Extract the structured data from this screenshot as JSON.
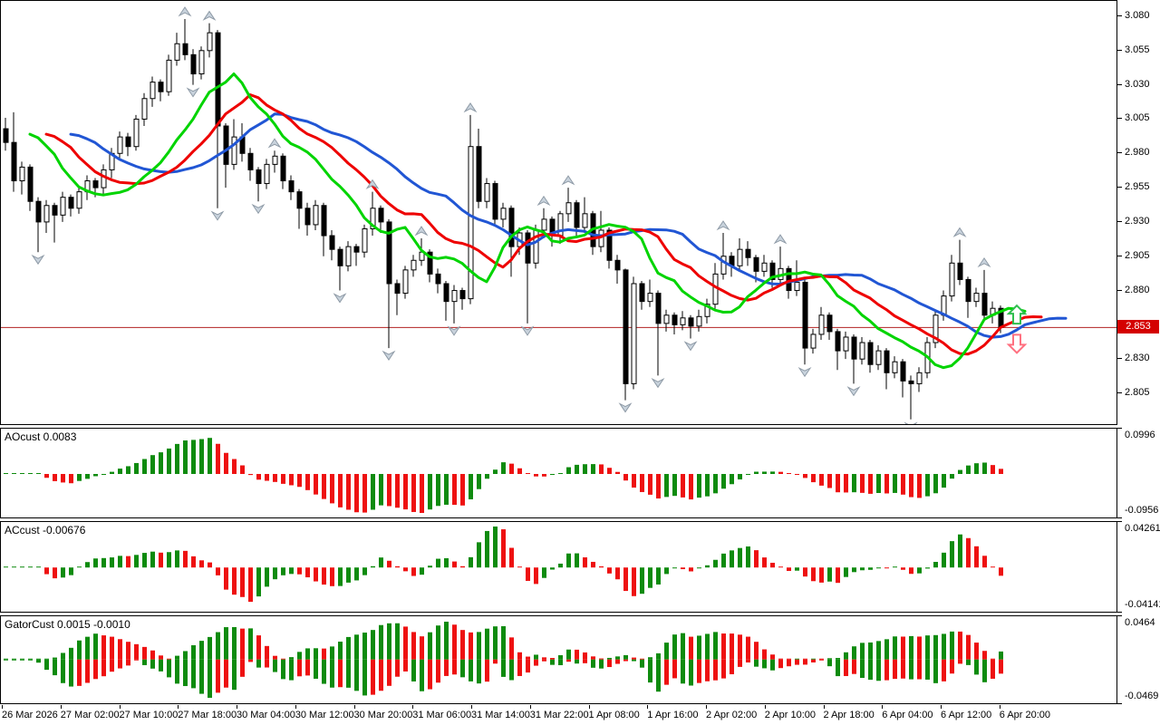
{
  "colors": {
    "background": "#ffffff",
    "bull_candle": "#ffffff",
    "bear_candle": "#000000",
    "candle_outline": "#000000",
    "alligator_jaw_blue": "#2156d4",
    "alligator_teeth_red": "#ee0000",
    "alligator_lips_green": "#00d400",
    "histogram_up_green": "#0e8b0e",
    "histogram_down_red": "#ee1111",
    "price_line_red": "#b22222",
    "price_badge_bg": "#d40000",
    "price_badge_text": "#ffffff",
    "fractal_fill": "#c9d3dd",
    "fractal_stroke": "#8e9aa6",
    "signal_up_green": "#2fbf4f",
    "signal_down_red": "#ff7080",
    "axis_text": "#000000"
  },
  "price_axis": {
    "tick_labels": [
      {
        "text": "3.080",
        "value": 3.08
      },
      {
        "text": "3.055",
        "value": 3.055
      },
      {
        "text": "3.030",
        "value": 3.03
      },
      {
        "text": "3.005",
        "value": 3.005
      },
      {
        "text": "2.980",
        "value": 2.98
      },
      {
        "text": "2.955",
        "value": 2.955
      },
      {
        "text": "2.930",
        "value": 2.93
      },
      {
        "text": "2.905",
        "value": 2.905
      },
      {
        "text": "2.880",
        "value": 2.88
      },
      {
        "text": "2.830",
        "value": 2.83
      },
      {
        "text": "2.805",
        "value": 2.805
      }
    ],
    "current": {
      "text": "2.853",
      "value": 2.853
    }
  },
  "time_axis": {
    "labels": [
      "26 Mar 2026",
      "27 Mar 02:00",
      "27 Mar 10:00",
      "27 Mar 18:00",
      "30 Mar 04:00",
      "30 Mar 12:00",
      "30 Mar 20:00",
      "31 Mar 06:00",
      "31 Mar 14:00",
      "31 Mar 22:00",
      "1 Apr 08:00",
      "1 Apr 16:00",
      "2 Apr 02:00",
      "2 Apr 10:00",
      "2 Apr 18:00",
      "6 Apr 04:00",
      "6 Apr 12:00",
      "6 Apr 20:00"
    ]
  },
  "panels": {
    "ao": {
      "label": "AOcust 0.0083",
      "scale_max": "0.0996",
      "scale_min": "-0.0956"
    },
    "ac": {
      "label": "ACcust -0.00676",
      "scale_max": "0.04261",
      "scale_min": "-0.04141"
    },
    "gator": {
      "label": "GatorCust 0.0015 -0.0010",
      "scale_max": "0.0464",
      "scale_min": "-0.0469"
    }
  },
  "chart_data": {
    "type": "candlestick",
    "price_range_visible": {
      "top_label": 3.08,
      "bottom_label": 2.805
    },
    "current_price": 2.853,
    "overlays": {
      "alligator": {
        "jaw": {
          "period": 13,
          "shift": 8,
          "color_key": "alligator_jaw_blue"
        },
        "teeth": {
          "period": 8,
          "shift": 5,
          "color_key": "alligator_teeth_red"
        },
        "lips": {
          "period": 5,
          "shift": 3,
          "color_key": "alligator_lips_green"
        }
      },
      "fractals": true
    },
    "sub_indicators": [
      {
        "id": "ao",
        "name": "AOcust",
        "type": "bar",
        "last_value": 0.0083,
        "range": [
          -0.0956,
          0.0996
        ]
      },
      {
        "id": "ac",
        "name": "ACcust",
        "type": "bar",
        "last_value": -0.00676,
        "range": [
          -0.04141,
          0.04261
        ]
      },
      {
        "id": "gator",
        "name": "GatorCust",
        "type": "double-bar",
        "last_values": [
          0.0015,
          -0.001
        ],
        "range": [
          -0.0469,
          0.0464
        ]
      }
    ],
    "signal_arrows": {
      "up": {
        "bar": 124,
        "tip_price": 2.869,
        "direction": "up"
      },
      "down": {
        "bar": 124,
        "tip_price": 2.8345,
        "direction": "down"
      }
    },
    "candles": [
      [
        2.998,
        3.006,
        2.982,
        2.988
      ],
      [
        2.988,
        3.01,
        2.952,
        2.96
      ],
      [
        2.96,
        2.974,
        2.95,
        2.97
      ],
      [
        2.97,
        2.972,
        2.938,
        2.945
      ],
      [
        2.945,
        2.948,
        2.908,
        2.93
      ],
      [
        2.93,
        2.946,
        2.922,
        2.942
      ],
      [
        2.942,
        2.944,
        2.915,
        2.935
      ],
      [
        2.935,
        2.952,
        2.93,
        2.948
      ],
      [
        2.948,
        2.95,
        2.934,
        2.94
      ],
      [
        2.94,
        2.956,
        2.936,
        2.952
      ],
      [
        2.952,
        2.964,
        2.946,
        2.96
      ],
      [
        2.96,
        2.962,
        2.948,
        2.955
      ],
      [
        2.955,
        2.972,
        2.95,
        2.968
      ],
      [
        2.968,
        2.984,
        2.962,
        2.98
      ],
      [
        2.98,
        2.996,
        2.975,
        2.992
      ],
      [
        2.992,
        2.995,
        2.978,
        2.985
      ],
      [
        2.985,
        3.008,
        2.982,
        3.005
      ],
      [
        3.005,
        3.024,
        3.0,
        3.02
      ],
      [
        3.02,
        3.036,
        3.014,
        3.032
      ],
      [
        3.032,
        3.034,
        3.018,
        3.025
      ],
      [
        3.025,
        3.052,
        3.022,
        3.048
      ],
      [
        3.048,
        3.068,
        3.044,
        3.06
      ],
      [
        3.06,
        3.078,
        3.048,
        3.052
      ],
      [
        3.052,
        3.056,
        3.03,
        3.038
      ],
      [
        3.038,
        3.058,
        3.034,
        3.055
      ],
      [
        3.055,
        3.075,
        3.05,
        3.068
      ],
      [
        3.068,
        3.07,
        2.94,
        3.0
      ],
      [
        3.0,
        3.002,
        2.955,
        2.972
      ],
      [
        2.972,
        3.005,
        2.968,
        2.992
      ],
      [
        2.992,
        3.002,
        2.974,
        2.98
      ],
      [
        2.98,
        2.984,
        2.96,
        2.968
      ],
      [
        2.968,
        2.97,
        2.945,
        2.958
      ],
      [
        2.958,
        2.976,
        2.954,
        2.972
      ],
      [
        2.972,
        2.982,
        2.966,
        2.978
      ],
      [
        2.978,
        2.98,
        2.954,
        2.96
      ],
      [
        2.96,
        2.964,
        2.946,
        2.952
      ],
      [
        2.952,
        2.954,
        2.925,
        2.94
      ],
      [
        2.94,
        2.944,
        2.92,
        2.928
      ],
      [
        2.928,
        2.946,
        2.924,
        2.942
      ],
      [
        2.942,
        2.944,
        2.905,
        2.92
      ],
      [
        2.92,
        2.924,
        2.902,
        2.91
      ],
      [
        2.91,
        2.912,
        2.88,
        2.898
      ],
      [
        2.898,
        2.916,
        2.894,
        2.912
      ],
      [
        2.912,
        2.914,
        2.898,
        2.908
      ],
      [
        2.908,
        2.928,
        2.904,
        2.925
      ],
      [
        2.925,
        2.952,
        2.92,
        2.94
      ],
      [
        2.94,
        2.942,
        2.922,
        2.93
      ],
      [
        2.93,
        2.932,
        2.838,
        2.885
      ],
      [
        2.885,
        2.888,
        2.862,
        2.878
      ],
      [
        2.878,
        2.898,
        2.874,
        2.895
      ],
      [
        2.895,
        2.906,
        2.89,
        2.902
      ],
      [
        2.902,
        2.918,
        2.898,
        2.908
      ],
      [
        2.908,
        2.91,
        2.886,
        2.892
      ],
      [
        2.892,
        2.896,
        2.878,
        2.885
      ],
      [
        2.885,
        2.887,
        2.858,
        2.872
      ],
      [
        2.872,
        2.884,
        2.856,
        2.88
      ],
      [
        2.88,
        2.882,
        2.866,
        2.874
      ],
      [
        2.874,
        3.008,
        2.87,
        2.985
      ],
      [
        2.985,
        2.998,
        2.94,
        2.945
      ],
      [
        2.945,
        2.962,
        2.94,
        2.958
      ],
      [
        2.958,
        2.96,
        2.928,
        2.932
      ],
      [
        2.932,
        2.944,
        2.926,
        2.94
      ],
      [
        2.94,
        2.942,
        2.89,
        2.912
      ],
      [
        2.912,
        2.926,
        2.906,
        2.922
      ],
      [
        2.922,
        2.924,
        2.856,
        2.9
      ],
      [
        2.9,
        2.928,
        2.896,
        2.924
      ],
      [
        2.924,
        2.94,
        2.918,
        2.932
      ],
      [
        2.932,
        2.934,
        2.912,
        2.92
      ],
      [
        2.92,
        2.938,
        2.914,
        2.936
      ],
      [
        2.936,
        2.955,
        2.93,
        2.944
      ],
      [
        2.944,
        2.946,
        2.92,
        2.926
      ],
      [
        2.926,
        2.948,
        2.922,
        2.936
      ],
      [
        2.936,
        2.938,
        2.906,
        2.912
      ],
      [
        2.912,
        2.938,
        2.908,
        2.924
      ],
      [
        2.924,
        2.926,
        2.896,
        2.902
      ],
      [
        2.902,
        2.906,
        2.885,
        2.895
      ],
      [
        2.895,
        2.896,
        2.8,
        2.812
      ],
      [
        2.812,
        2.89,
        2.808,
        2.885
      ],
      [
        2.885,
        2.887,
        2.866,
        2.872
      ],
      [
        2.872,
        2.888,
        2.868,
        2.878
      ],
      [
        2.878,
        2.88,
        2.818,
        2.856
      ],
      [
        2.856,
        2.866,
        2.85,
        2.862
      ],
      [
        2.862,
        2.864,
        2.848,
        2.855
      ],
      [
        2.855,
        2.865,
        2.851,
        2.86
      ],
      [
        2.86,
        2.862,
        2.845,
        2.854
      ],
      [
        2.854,
        2.866,
        2.85,
        2.861
      ],
      [
        2.861,
        2.874,
        2.856,
        2.87
      ],
      [
        2.87,
        2.9,
        2.866,
        2.892
      ],
      [
        2.892,
        2.922,
        2.888,
        2.905
      ],
      [
        2.905,
        2.908,
        2.89,
        2.898
      ],
      [
        2.898,
        2.918,
        2.894,
        2.91
      ],
      [
        2.91,
        2.916,
        2.898,
        2.904
      ],
      [
        2.904,
        2.906,
        2.886,
        2.894
      ],
      [
        2.894,
        2.906,
        2.89,
        2.9
      ],
      [
        2.9,
        2.902,
        2.882,
        2.888
      ],
      [
        2.888,
        2.912,
        2.884,
        2.896
      ],
      [
        2.896,
        2.898,
        2.874,
        2.88
      ],
      [
        2.88,
        2.902,
        2.876,
        2.886
      ],
      [
        2.886,
        2.888,
        2.826,
        2.838
      ],
      [
        2.838,
        2.852,
        2.834,
        2.848
      ],
      [
        2.848,
        2.868,
        2.844,
        2.862
      ],
      [
        2.862,
        2.864,
        2.844,
        2.85
      ],
      [
        2.85,
        2.852,
        2.822,
        2.836
      ],
      [
        2.836,
        2.85,
        2.83,
        2.846
      ],
      [
        2.846,
        2.848,
        2.812,
        2.83
      ],
      [
        2.83,
        2.846,
        2.826,
        2.842
      ],
      [
        2.842,
        2.844,
        2.82,
        2.826
      ],
      [
        2.826,
        2.84,
        2.822,
        2.836
      ],
      [
        2.836,
        2.838,
        2.808,
        2.82
      ],
      [
        2.82,
        2.832,
        2.816,
        2.828
      ],
      [
        2.828,
        2.83,
        2.802,
        2.814
      ],
      [
        2.814,
        2.818,
        2.786,
        2.812
      ],
      [
        2.812,
        2.824,
        2.806,
        2.82
      ],
      [
        2.82,
        2.846,
        2.816,
        2.842
      ],
      [
        2.842,
        2.866,
        2.838,
        2.862
      ],
      [
        2.862,
        2.88,
        2.858,
        2.876
      ],
      [
        2.876,
        2.906,
        2.872,
        2.9
      ],
      [
        2.9,
        2.917,
        2.884,
        2.888
      ],
      [
        2.888,
        2.89,
        2.86,
        2.872
      ],
      [
        2.872,
        2.882,
        2.868,
        2.878
      ],
      [
        2.878,
        2.895,
        2.858,
        2.862
      ],
      [
        2.862,
        2.872,
        2.856,
        2.867
      ],
      [
        2.867,
        2.869,
        2.849,
        2.853
      ]
    ]
  }
}
